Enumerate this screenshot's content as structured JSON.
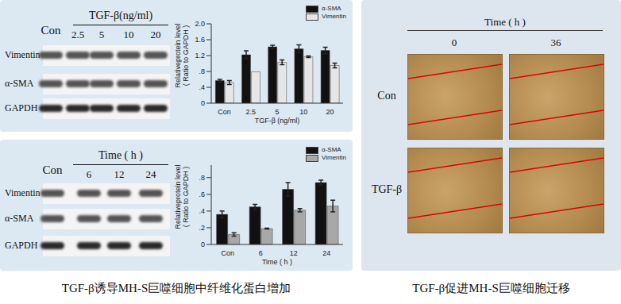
{
  "chart_data": [
    {
      "type": "bar",
      "categories": [
        "Con",
        "2.5",
        "5",
        "10",
        "20"
      ],
      "x_label": "TGF-β (ng/ml)",
      "y_label": [
        "Relativeprotein level",
        "( Ratio to GAPDH )"
      ],
      "ylim": [
        0,
        2
      ],
      "yticks": [
        0,
        {
          "value": 0.4,
          "label": ".4"
        },
        {
          "value": 0.8,
          "label": ".8"
        },
        1.2,
        1.6,
        {
          "value": 2,
          "label": "2.0"
        }
      ],
      "legend": "top right",
      "series": [
        {
          "name": "α-SMA",
          "color": "#111111",
          "values": [
            0.57,
            1.22,
            1.42,
            1.37,
            1.33
          ],
          "errors": [
            0.03,
            0.1,
            0.04,
            0.1,
            0.08
          ]
        },
        {
          "name": "Vimentin",
          "color": "#e6e6e6",
          "values": [
            0.52,
            0.79,
            1.03,
            1.17,
            0.95
          ],
          "errors": [
            0.05,
            0,
            0.06,
            0.02,
            0.06
          ]
        }
      ]
    },
    {
      "type": "bar",
      "categories": [
        "Con",
        "6",
        "12",
        "24"
      ],
      "x_label": "Time ( h )",
      "y_label": [
        "Relativeprotein level",
        "( Ratio to GAPDH )"
      ],
      "ylim": [
        0,
        0.95
      ],
      "yticks": [
        0,
        {
          "value": 0.2,
          "label": ".2"
        },
        {
          "value": 0.4,
          "label": ".4"
        },
        {
          "value": 0.6,
          "label": ".6"
        },
        {
          "value": 0.8,
          "label": ".8"
        }
      ],
      "legend": "top right",
      "series": [
        {
          "name": "α-SMA",
          "color": "#111111",
          "values": [
            0.36,
            0.45,
            0.66,
            0.74
          ],
          "errors": [
            0.04,
            0.03,
            0.08,
            0.03
          ]
        },
        {
          "name": "Vimentin",
          "color": "#a8a8a8",
          "values": [
            0.12,
            0.19,
            0.41,
            0.46
          ],
          "errors": [
            0.02,
            0.005,
            0.02,
            0.07
          ]
        }
      ]
    }
  ],
  "blots": [
    {
      "header": "TGF-β(ng/ml)",
      "lanes": [
        "Con",
        "2.5",
        "5",
        "10",
        "20"
      ],
      "rows": [
        "Vimentin",
        "α-SMA",
        "GAPDH"
      ]
    },
    {
      "header": "Time ( h )",
      "lanes": [
        "Con",
        "6",
        "12",
        "24"
      ],
      "rows": [
        "Vimentin",
        "α-SMA",
        "GAPDH"
      ]
    }
  ],
  "migration": {
    "header": "Time ( h )",
    "columns": [
      "0",
      "36"
    ],
    "rows": [
      "Con",
      "TGF-β"
    ]
  },
  "captions": [
    "TGF-β诱导MH-S巨噬细胞中纤维化蛋白增加",
    "TGF-β促进MH-S巨噬细胞迁移"
  ]
}
